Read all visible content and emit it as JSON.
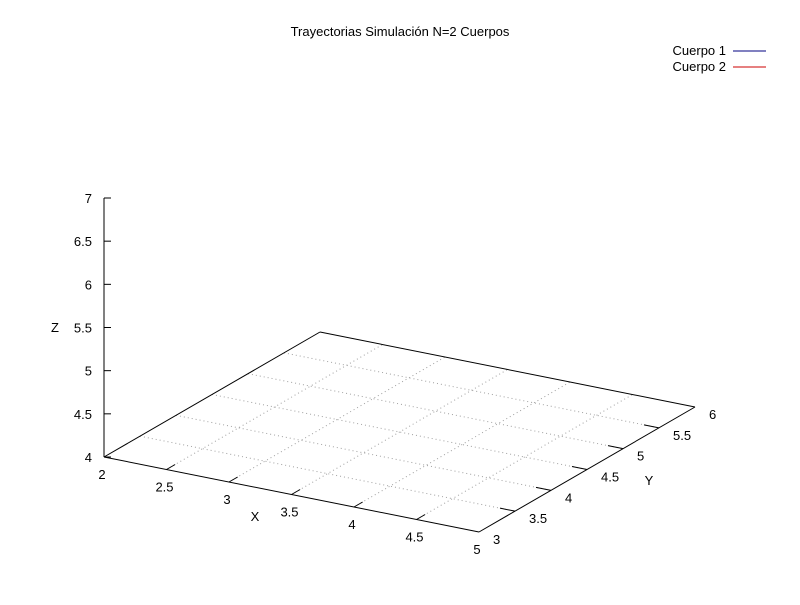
{
  "chart_data": {
    "type": "line",
    "title": "Trayectorias Simulación N=2 Cuerpos",
    "xlabel": "X",
    "ylabel": "Y",
    "zlabel": "Z",
    "xlim": [
      2,
      5
    ],
    "ylim": [
      3,
      6
    ],
    "zlim": [
      4,
      7
    ],
    "x_ticks": [
      "2",
      "2.5",
      "3",
      "3.5",
      "4",
      "4.5",
      "5"
    ],
    "y_ticks": [
      "3",
      "3.5",
      "4",
      "4.5",
      "5",
      "5.5",
      "6"
    ],
    "z_ticks": [
      "4",
      "4.5",
      "5",
      "5.5",
      "6",
      "6.5",
      "7"
    ],
    "grid": true,
    "legend_position": "top-right",
    "series": [
      {
        "name": "Cuerpo 1",
        "color": "#000080",
        "points": []
      },
      {
        "name": "Cuerpo 2",
        "color": "#cc0000",
        "points": []
      }
    ]
  }
}
